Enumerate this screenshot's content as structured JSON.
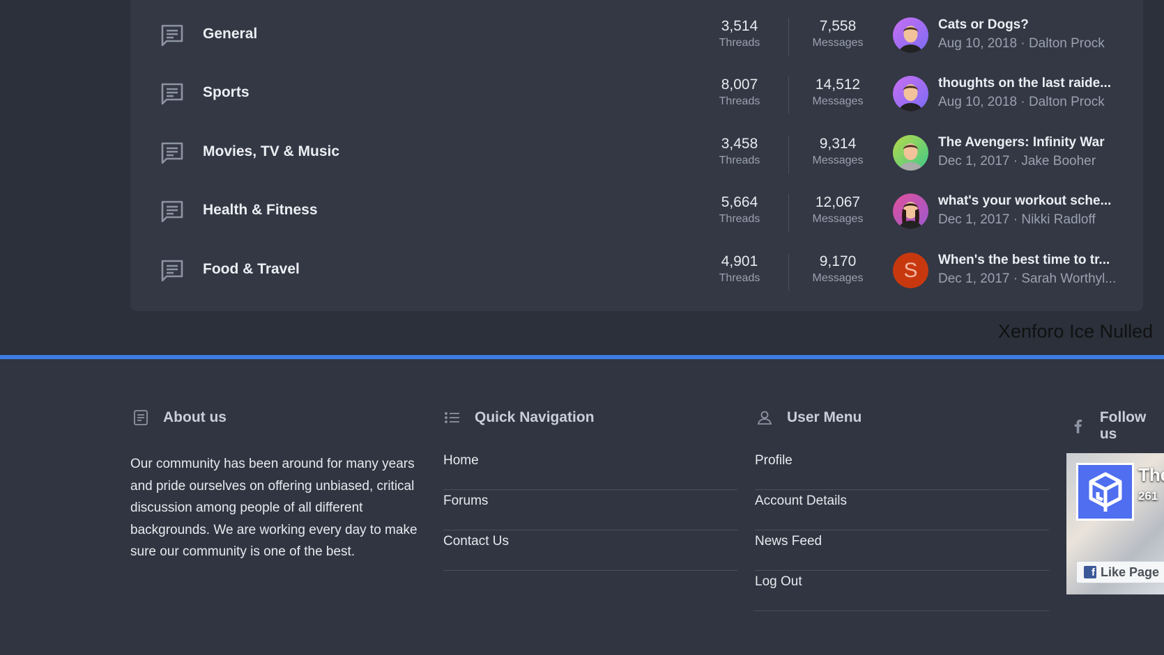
{
  "watermark": "Xenforo Ice Nulled",
  "forums": [
    {
      "title": "General",
      "threads": "3,514",
      "messages": "7,558",
      "last_title": "Cats or Dogs?",
      "last_date": "Aug 10, 2018",
      "last_user": "Dalton Prock",
      "avatar": "purple"
    },
    {
      "title": "Sports",
      "threads": "8,007",
      "messages": "14,512",
      "last_title": "thoughts on the last raide...",
      "last_date": "Aug 10, 2018",
      "last_user": "Dalton Prock",
      "avatar": "purple"
    },
    {
      "title": "Movies, TV & Music",
      "threads": "3,458",
      "messages": "9,314",
      "last_title": "The Avengers: Infinity War",
      "last_date": "Dec 1, 2017",
      "last_user": "Jake Booher",
      "avatar": "green"
    },
    {
      "title": "Health & Fitness",
      "threads": "5,664",
      "messages": "12,067",
      "last_title": "what's your workout sche...",
      "last_date": "Dec 1, 2017",
      "last_user": "Nikki Radloff",
      "avatar": "pink"
    },
    {
      "title": "Food & Travel",
      "threads": "4,901",
      "messages": "9,170",
      "last_title": "When's the best time to tr...",
      "last_date": "Dec 1, 2017",
      "last_user": "Sarah Worthyl...",
      "avatar": "letter",
      "letter": "S"
    }
  ],
  "labels": {
    "threads": "Threads",
    "messages": "Messages",
    "sep": "·"
  },
  "footer": {
    "about": {
      "title": "About us",
      "text": "Our community has been around for many years and pride ourselves on offering unbiased, critical discussion among people of all different backgrounds. We are working every day to make sure our community is one of the best."
    },
    "quick_nav": {
      "title": "Quick Navigation",
      "items": [
        "Home",
        "Forums",
        "Contact Us"
      ]
    },
    "user_menu": {
      "title": "User Menu",
      "items": [
        "Profile",
        "Account Details",
        "News Feed",
        "Log Out"
      ]
    },
    "follow": {
      "title": "Follow us",
      "page_name": "The",
      "likes": "261",
      "like_button": "Like Page"
    }
  },
  "colors": {
    "accent": "#3f7ae0",
    "background": "#2b303b",
    "card": "#333844"
  }
}
